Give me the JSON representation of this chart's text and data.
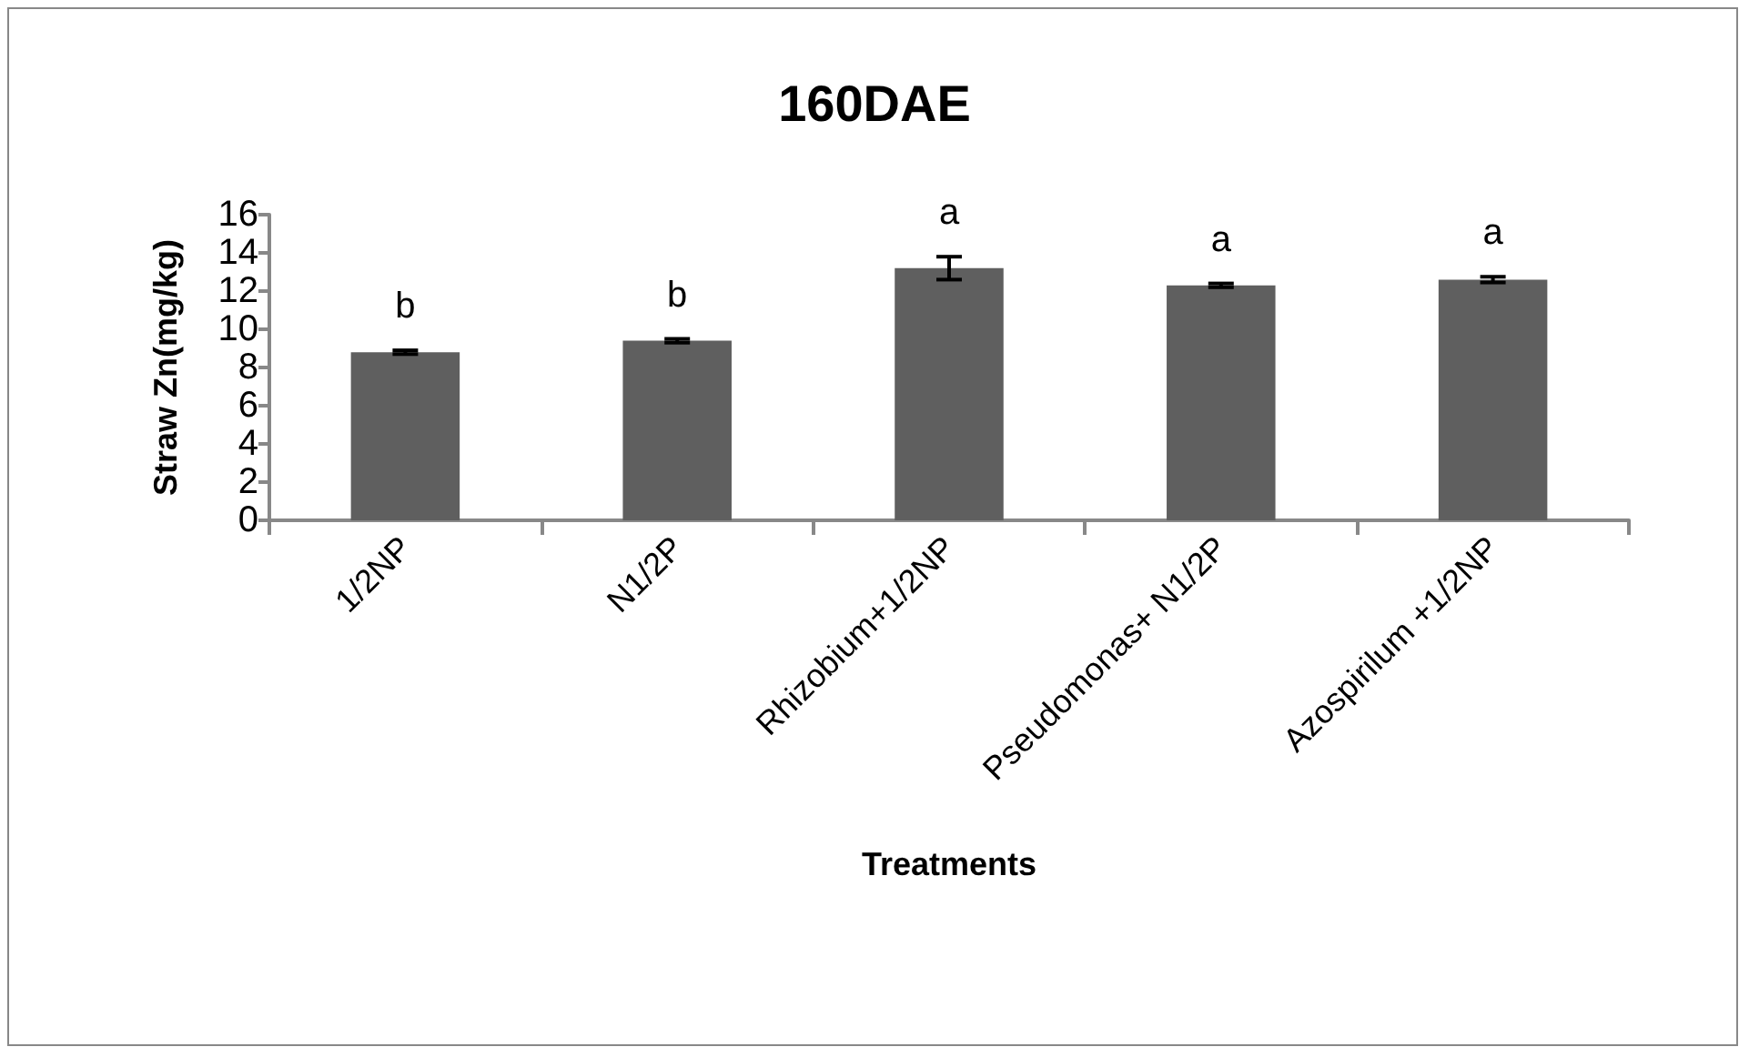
{
  "chart_data": {
    "type": "bar",
    "title": "160DAE",
    "xlabel": "Treatments",
    "ylabel": "Straw Zn(mg/kg)",
    "categories": [
      "1/2NP",
      "N1/2P",
      "Rhizobium+1/2NP",
      "Pseudomonas+ N1/2P",
      "Azospirilum +1/2NP"
    ],
    "values": [
      8.8,
      9.4,
      13.2,
      12.3,
      12.6
    ],
    "errors": [
      0.1,
      0.1,
      0.6,
      0.1,
      0.15
    ],
    "color": "#5f5f5f",
    "ylim": [
      0,
      16
    ],
    "yticks": [
      0,
      2,
      4,
      6,
      8,
      10,
      12,
      14,
      16
    ],
    "grid": false,
    "annotations": [
      "b",
      "b",
      "a",
      "a",
      "a"
    ]
  }
}
